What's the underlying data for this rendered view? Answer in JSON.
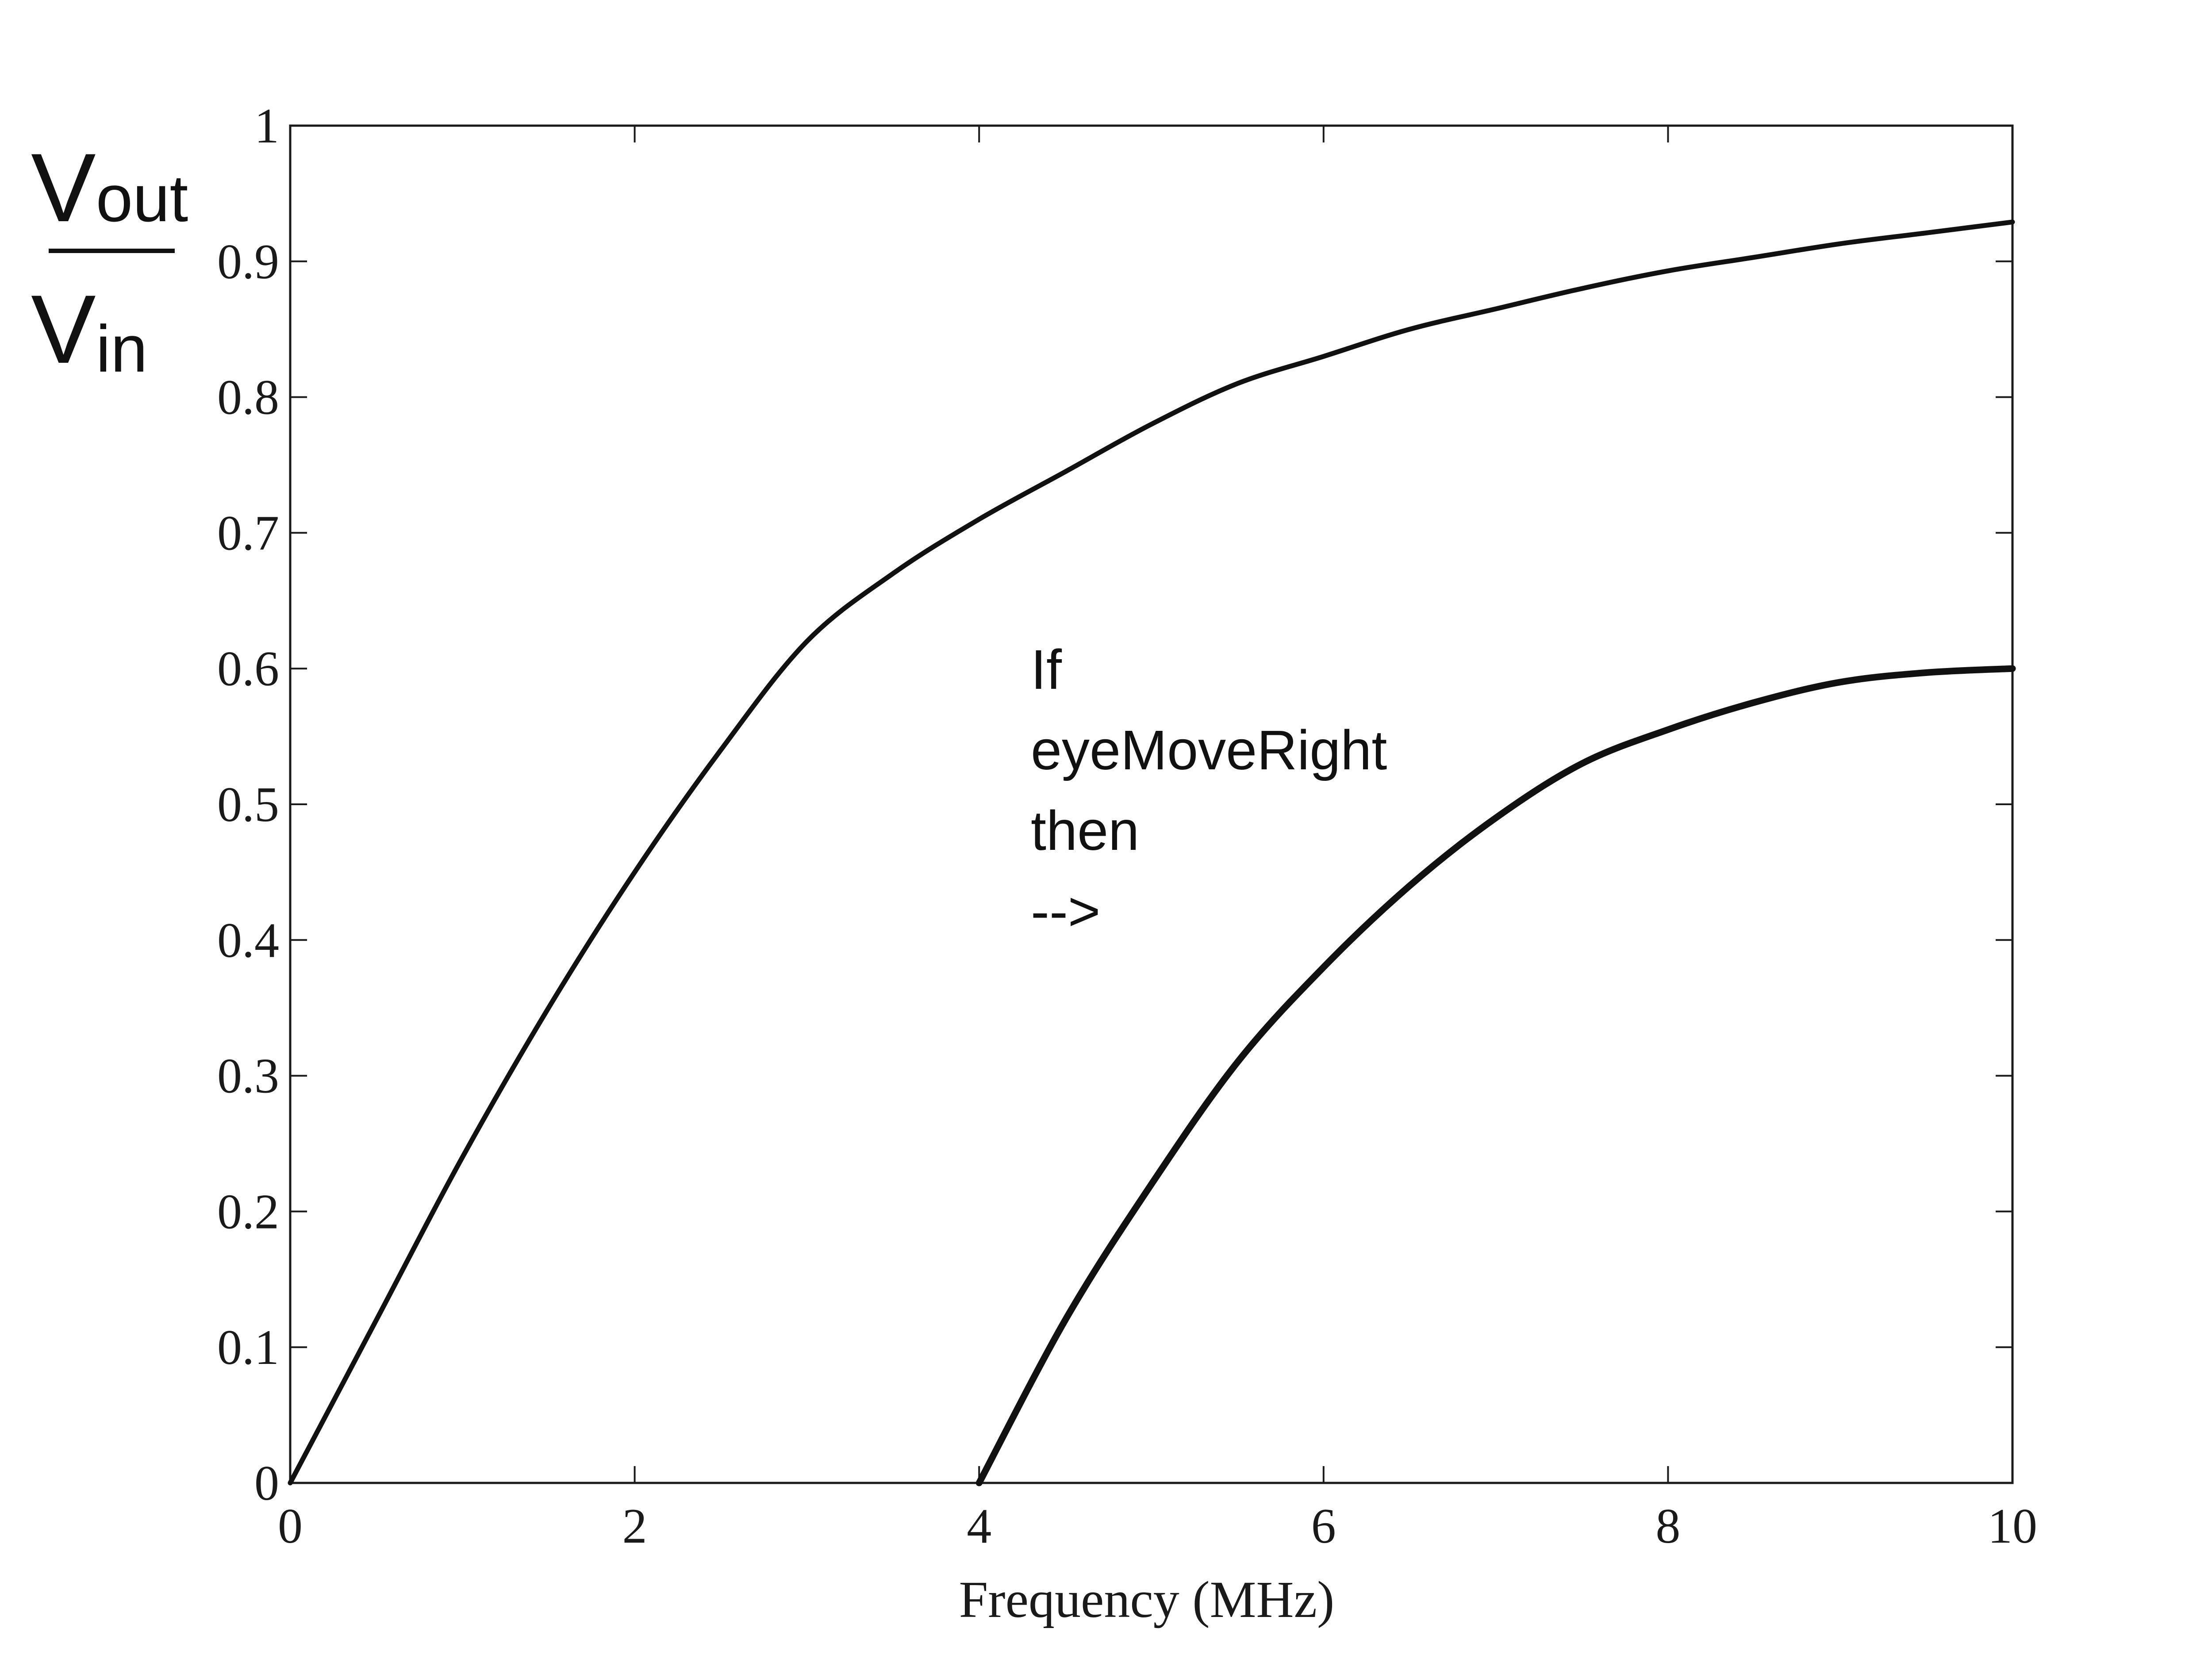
{
  "chart_data": {
    "type": "line",
    "title": "",
    "xlabel": "Frequency (MHz)",
    "ylabel": {
      "numerator": {
        "base": "V",
        "sub": "out"
      },
      "denominator": {
        "base": "V",
        "sub": "in"
      }
    },
    "xlim": [
      0,
      10
    ],
    "ylim": [
      0,
      1
    ],
    "x_ticks": [
      0,
      2,
      4,
      6,
      8,
      10
    ],
    "x_tick_labels": [
      "0",
      "2",
      "4",
      "6",
      "8",
      "10"
    ],
    "y_ticks": [
      0,
      0.1,
      0.2,
      0.3,
      0.4,
      0.5,
      0.6,
      0.7,
      0.8,
      0.9,
      1
    ],
    "y_tick_labels": [
      "0",
      "0.1",
      "0.2",
      "0.3",
      "0.4",
      "0.5",
      "0.6",
      "0.7",
      "0.8",
      "0.9",
      "1"
    ],
    "grid": false,
    "line_color": "#111111",
    "series": [
      {
        "x": [
          0,
          0.5,
          1,
          1.5,
          2,
          2.5,
          3,
          3.5,
          4,
          4.5,
          5,
          5.5,
          6,
          6.5,
          7,
          7.5,
          8,
          8.5,
          9,
          9.5,
          10
        ],
        "y": [
          0,
          0.12,
          0.24,
          0.35,
          0.45,
          0.54,
          0.62,
          0.67,
          0.71,
          0.745,
          0.78,
          0.81,
          0.83,
          0.85,
          0.865,
          0.88,
          0.893,
          0.903,
          0.913,
          0.921,
          0.929
        ]
      },
      {
        "x": [
          4,
          4.5,
          5,
          5.5,
          6,
          6.5,
          7,
          7.5,
          8,
          8.5,
          9,
          9.5,
          10
        ],
        "y": [
          0,
          0.12,
          0.22,
          0.31,
          0.38,
          0.44,
          0.49,
          0.53,
          0.555,
          0.575,
          0.59,
          0.597,
          0.6
        ]
      }
    ],
    "annotation": {
      "lines": [
        "If",
        "eyeMoveRight",
        "then",
        "-->"
      ],
      "x": 4.3,
      "y": 0.585
    }
  }
}
